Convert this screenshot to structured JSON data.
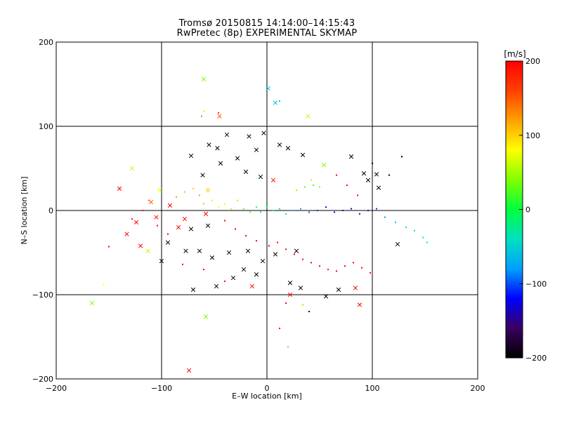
{
  "chart_data": {
    "type": "scatter",
    "title": "Tromsø 20150815  14:14:00–14:15:43",
    "subtitle": "RwPretec (8p) EXPERIMENTAL SKYMAP",
    "xlabel": "E–W location [km]",
    "ylabel": "N–S location [km]",
    "xlim": [
      -200,
      200
    ],
    "ylim": [
      -200,
      200
    ],
    "xticks": [
      -200,
      -100,
      0,
      100,
      200
    ],
    "yticks": [
      -200,
      -100,
      0,
      100,
      200
    ],
    "grid_lines": [
      -100,
      0,
      100
    ],
    "colorbar": {
      "label": "[m/s]",
      "range": [
        -200,
        200
      ],
      "ticks": [
        200,
        100,
        0,
        -100,
        -200
      ],
      "colormap": [
        "#000000",
        "#3a0060",
        "#0000ff",
        "#00a0ff",
        "#00e0c0",
        "#00ff40",
        "#80ff00",
        "#ffff00",
        "#ffa000",
        "#ff4000",
        "#ff0000"
      ]
    },
    "series": [
      {
        "marker": "x",
        "points": [
          [
            -60,
            156,
            40
          ],
          [
            1,
            145,
            -60
          ],
          [
            8,
            128,
            -60
          ],
          [
            39,
            112,
            60
          ],
          [
            -45,
            112,
            150
          ],
          [
            -55,
            78,
            -200
          ],
          [
            -47,
            74,
            -200
          ],
          [
            -38,
            90,
            -200
          ],
          [
            -17,
            88,
            -200
          ],
          [
            -3,
            92,
            -200
          ],
          [
            -10,
            72,
            -200
          ],
          [
            12,
            78,
            -200
          ],
          [
            20,
            74,
            -200
          ],
          [
            -72,
            65,
            -200
          ],
          [
            -61,
            42,
            -200
          ],
          [
            -28,
            62,
            -200
          ],
          [
            -44,
            56,
            -200
          ],
          [
            -20,
            46,
            -200
          ],
          [
            -6,
            40,
            -200
          ],
          [
            34,
            66,
            -200
          ],
          [
            80,
            64,
            -200
          ],
          [
            92,
            44,
            -200
          ],
          [
            104,
            43,
            -200
          ],
          [
            96,
            36,
            -200
          ],
          [
            106,
            27,
            -200
          ],
          [
            54,
            54,
            40
          ],
          [
            -102,
            24,
            80
          ],
          [
            -128,
            50,
            60
          ],
          [
            -56,
            24,
            100
          ],
          [
            6,
            36,
            180
          ],
          [
            -110,
            10,
            150
          ],
          [
            -92,
            6,
            200
          ],
          [
            -105,
            -8,
            190
          ],
          [
            -78,
            -10,
            200
          ],
          [
            -58,
            -4,
            200
          ],
          [
            -84,
            -20,
            200
          ],
          [
            -56,
            -18,
            -200
          ],
          [
            -72,
            -22,
            -200
          ],
          [
            -94,
            -38,
            -200
          ],
          [
            -77,
            -48,
            -200
          ],
          [
            -64,
            -48,
            -200
          ],
          [
            -52,
            -56,
            -200
          ],
          [
            -36,
            -50,
            -200
          ],
          [
            -18,
            -48,
            -200
          ],
          [
            -4,
            -60,
            -200
          ],
          [
            8,
            -52,
            -200
          ],
          [
            28,
            -48,
            -200
          ],
          [
            -22,
            -70,
            -200
          ],
          [
            -10,
            -76,
            -200
          ],
          [
            -32,
            -80,
            -200
          ],
          [
            -48,
            -90,
            -200
          ],
          [
            -70,
            -94,
            -200
          ],
          [
            22,
            -86,
            -200
          ],
          [
            32,
            -92,
            -200
          ],
          [
            56,
            -102,
            -200
          ],
          [
            68,
            -94,
            -200
          ],
          [
            -14,
            -90,
            200
          ],
          [
            22,
            -100,
            200
          ],
          [
            -100,
            -60,
            -200
          ],
          [
            -113,
            -48,
            60
          ],
          [
            -120,
            -42,
            200
          ],
          [
            -133,
            -28,
            200
          ],
          [
            -140,
            26,
            200
          ],
          [
            -124,
            -14,
            200
          ],
          [
            -166,
            -110,
            40
          ],
          [
            -58,
            -126,
            40
          ],
          [
            -74,
            -190,
            200
          ],
          [
            88,
            -112,
            200
          ],
          [
            124,
            -40,
            -200
          ],
          [
            84,
            -92,
            200
          ]
        ]
      },
      {
        "marker": "dot",
        "points": [
          [
            -150,
            -43,
            200
          ],
          [
            -155,
            -88,
            80
          ],
          [
            -112,
            12,
            150
          ],
          [
            -118,
            0,
            200
          ],
          [
            -128,
            -10,
            190
          ],
          [
            -104,
            -18,
            200
          ],
          [
            -94,
            -28,
            200
          ],
          [
            -86,
            16,
            120
          ],
          [
            -78,
            22,
            110
          ],
          [
            -70,
            26,
            100
          ],
          [
            -64,
            18,
            120
          ],
          [
            -60,
            8,
            110
          ],
          [
            -52,
            12,
            90
          ],
          [
            -46,
            4,
            80
          ],
          [
            -40,
            8,
            70
          ],
          [
            -34,
            2,
            60
          ],
          [
            -28,
            12,
            50
          ],
          [
            -22,
            2,
            30
          ],
          [
            -16,
            -2,
            20
          ],
          [
            -10,
            4,
            10
          ],
          [
            -6,
            -2,
            0
          ],
          [
            0,
            4,
            -10
          ],
          [
            6,
            0,
            -20
          ],
          [
            12,
            2,
            -30
          ],
          [
            18,
            -4,
            -40
          ],
          [
            24,
            0,
            -60
          ],
          [
            32,
            2,
            -80
          ],
          [
            40,
            -2,
            -100
          ],
          [
            48,
            0,
            -110
          ],
          [
            56,
            4,
            -120
          ],
          [
            64,
            -2,
            -130
          ],
          [
            72,
            0,
            -140
          ],
          [
            80,
            2,
            -140
          ],
          [
            88,
            -4,
            -130
          ],
          [
            96,
            0,
            -120
          ],
          [
            104,
            2,
            -110
          ],
          [
            112,
            -8,
            -80
          ],
          [
            122,
            -14,
            -60
          ],
          [
            132,
            -20,
            -40
          ],
          [
            140,
            -24,
            -30
          ],
          [
            148,
            -32,
            -20
          ],
          [
            152,
            -38,
            -30
          ],
          [
            128,
            64,
            -200
          ],
          [
            116,
            42,
            -200
          ],
          [
            100,
            56,
            -200
          ],
          [
            12,
            130,
            -60
          ],
          [
            -60,
            118,
            60
          ],
          [
            -62,
            112,
            140
          ],
          [
            -46,
            116,
            180
          ],
          [
            28,
            24,
            40
          ],
          [
            36,
            28,
            30
          ],
          [
            44,
            30,
            20
          ],
          [
            50,
            28,
            40
          ],
          [
            42,
            36,
            60
          ],
          [
            -40,
            -12,
            200
          ],
          [
            -30,
            -22,
            200
          ],
          [
            -20,
            -30,
            200
          ],
          [
            -10,
            -36,
            200
          ],
          [
            2,
            -42,
            200
          ],
          [
            10,
            -38,
            200
          ],
          [
            18,
            -46,
            200
          ],
          [
            26,
            -52,
            200
          ],
          [
            34,
            -58,
            200
          ],
          [
            42,
            -62,
            200
          ],
          [
            50,
            -66,
            200
          ],
          [
            58,
            -70,
            200
          ],
          [
            66,
            -72,
            200
          ],
          [
            74,
            -66,
            200
          ],
          [
            82,
            -62,
            200
          ],
          [
            90,
            -68,
            200
          ],
          [
            98,
            -74,
            200
          ],
          [
            -80,
            -64,
            200
          ],
          [
            -60,
            -70,
            200
          ],
          [
            -40,
            -84,
            200
          ],
          [
            18,
            -110,
            200
          ],
          [
            40,
            -120,
            -200
          ],
          [
            12,
            -140,
            200
          ],
          [
            20,
            -162,
            120
          ],
          [
            34,
            -112,
            40
          ],
          [
            66,
            42,
            200
          ],
          [
            76,
            30,
            200
          ],
          [
            86,
            18,
            200
          ]
        ]
      }
    ]
  }
}
